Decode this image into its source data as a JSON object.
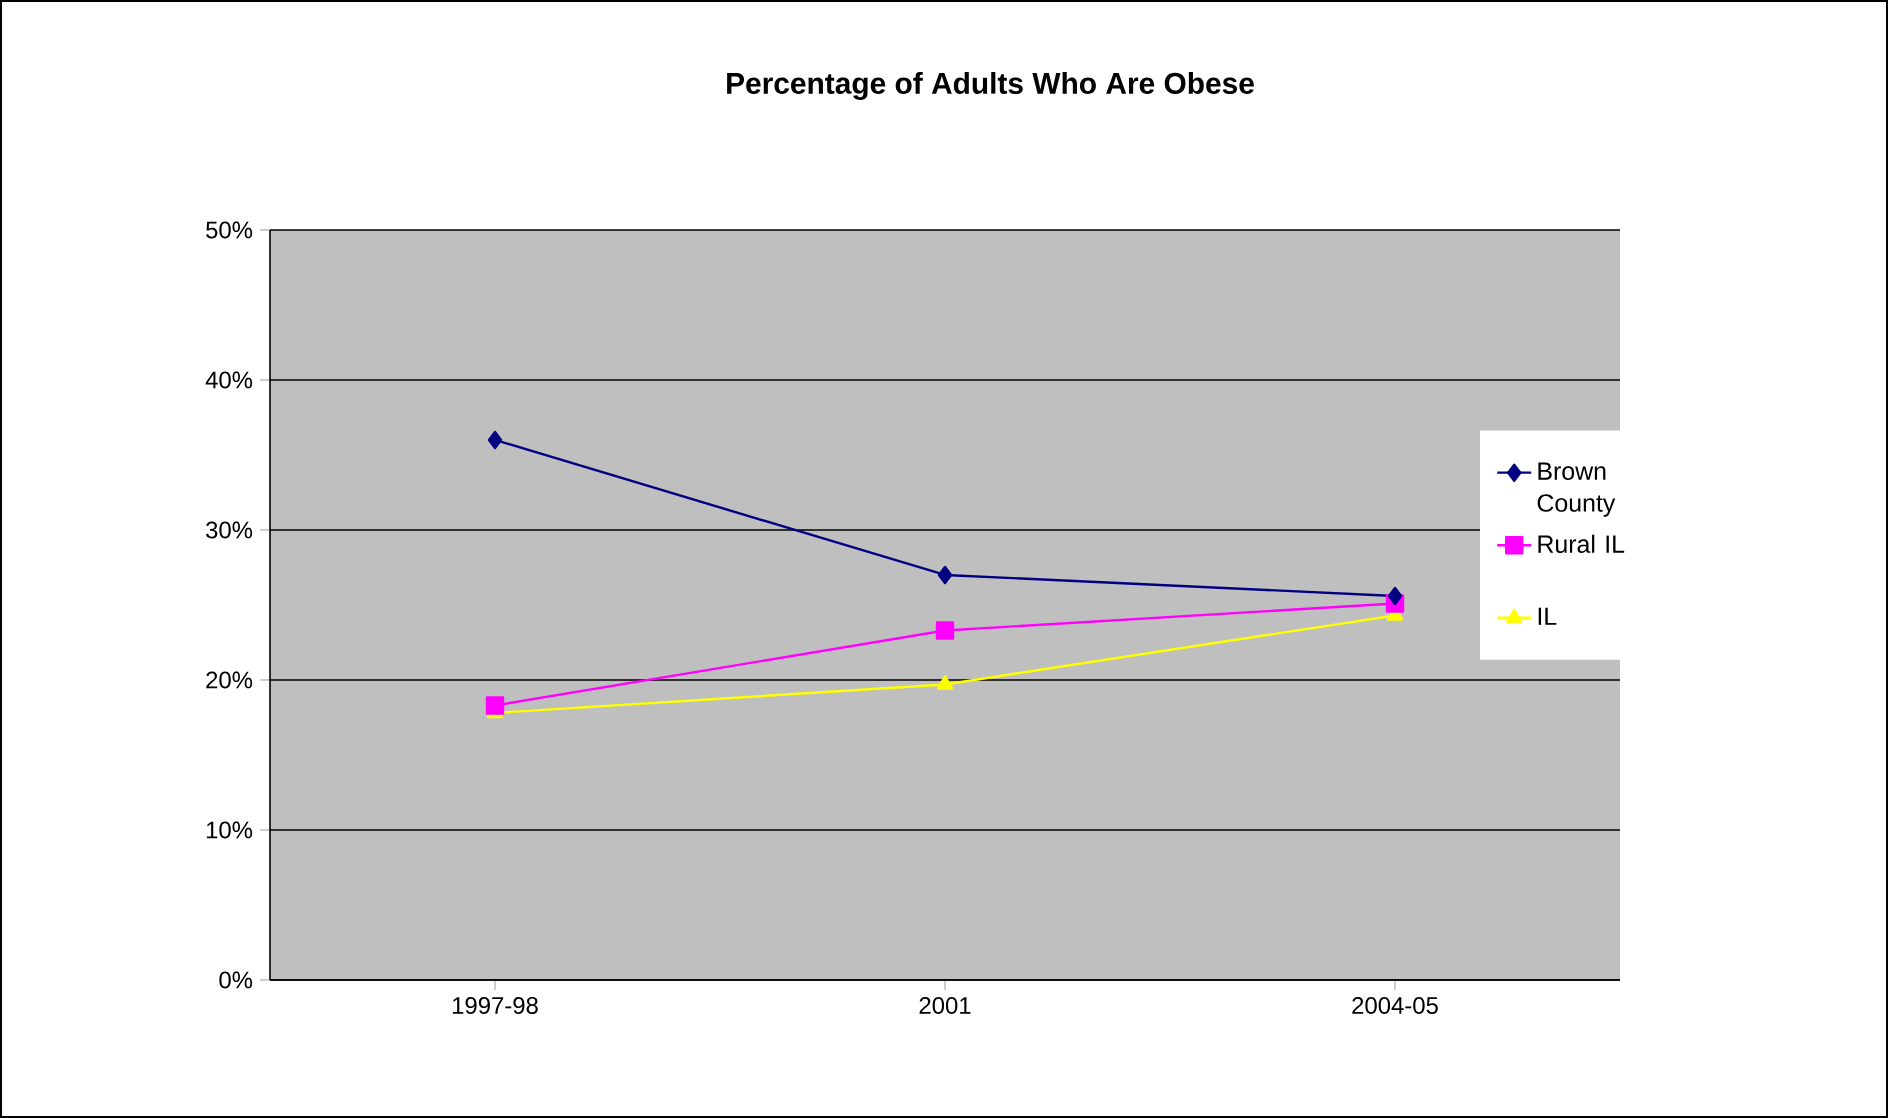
{
  "chart_data": {
    "type": "line",
    "title": "Percentage of Adults Who Are Obese",
    "categories": [
      "1997-98",
      "2001",
      "2004-05"
    ],
    "series": [
      {
        "name": "Brown County",
        "color": "#000080",
        "marker": "diamond",
        "values": [
          36.0,
          27.0,
          25.6
        ]
      },
      {
        "name": "Rural IL",
        "color": "#ff00ff",
        "marker": "square",
        "values": [
          18.3,
          23.3,
          25.1
        ]
      },
      {
        "name": "IL",
        "color": "#ffff00",
        "marker": "triangle",
        "values": [
          17.8,
          19.7,
          24.3
        ]
      }
    ],
    "ylim": [
      0,
      50
    ],
    "yticks": [
      {
        "value": 0,
        "label": "0%"
      },
      {
        "value": 10,
        "label": "10%"
      },
      {
        "value": 20,
        "label": "20%"
      },
      {
        "value": 30,
        "label": "30%"
      },
      {
        "value": 40,
        "label": "40%"
      },
      {
        "value": 50,
        "label": "50%"
      }
    ],
    "grid": "y",
    "legend": "right",
    "line_style": "solid"
  }
}
